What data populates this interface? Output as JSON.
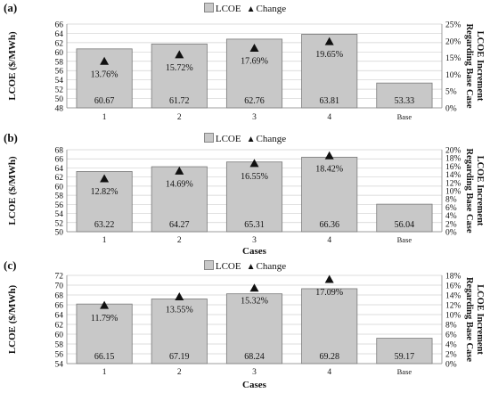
{
  "legend": {
    "bar_label": "LCOE",
    "marker_label": "Change"
  },
  "colors": {
    "bar_fill": "#c8c8c8",
    "bar_stroke": "#7a7a7a",
    "marker": "#111111",
    "grid": "#d0d0d0"
  },
  "chart_data": [
    {
      "panel_label": "(a)",
      "type": "bar",
      "categories": [
        "1",
        "2",
        "3",
        "4",
        "Base"
      ],
      "series": [
        {
          "name": "LCOE",
          "values": [
            60.67,
            61.72,
            62.76,
            63.81,
            53.33
          ],
          "labels": [
            "60.67",
            "61.72",
            "62.76",
            "63.81",
            "53.33"
          ]
        },
        {
          "name": "Change",
          "axis": "right",
          "values": [
            13.76,
            15.72,
            17.69,
            19.65,
            null
          ],
          "labels": [
            "13.76%",
            "15.72%",
            "17.69%",
            "19.65%",
            ""
          ]
        }
      ],
      "xlabel": "",
      "ylabel": "LCOE ($/MWh)",
      "y2label": [
        "LCOE Increment",
        "Regarding Base Case"
      ],
      "ylim": [
        48,
        66
      ],
      "yticks": [
        48,
        50,
        52,
        54,
        56,
        58,
        60,
        62,
        64,
        66
      ],
      "y2lim": [
        0,
        25
      ],
      "y2ticks": [
        "0%",
        "5%",
        "10%",
        "15%",
        "20%",
        "25%"
      ],
      "grid": true,
      "legend_position": "top-center"
    },
    {
      "panel_label": "(b)",
      "type": "bar",
      "categories": [
        "1",
        "2",
        "3",
        "4",
        "Base"
      ],
      "series": [
        {
          "name": "LCOE",
          "values": [
            63.22,
            64.27,
            65.31,
            66.36,
            56.04
          ],
          "labels": [
            "63.22",
            "64.27",
            "65.31",
            "66.36",
            "56.04"
          ]
        },
        {
          "name": "Change",
          "axis": "right",
          "values": [
            12.82,
            14.69,
            16.55,
            18.42,
            null
          ],
          "labels": [
            "12.82%",
            "14.69%",
            "16.55%",
            "18.42%",
            ""
          ]
        }
      ],
      "xlabel": "Cases",
      "ylabel": "LCOE ($/MWh)",
      "y2label": [
        "LCOE Increment",
        "Regarding Base Case"
      ],
      "ylim": [
        50,
        68
      ],
      "yticks": [
        50,
        52,
        54,
        56,
        58,
        60,
        62,
        64,
        66,
        68
      ],
      "y2lim": [
        0,
        20
      ],
      "y2ticks": [
        "0%",
        "2%",
        "4%",
        "6%",
        "8%",
        "10%",
        "12%",
        "14%",
        "16%",
        "18%",
        "20%"
      ],
      "grid": true,
      "legend_position": "top-center"
    },
    {
      "panel_label": "(c)",
      "type": "bar",
      "categories": [
        "1",
        "2",
        "3",
        "4",
        "Base"
      ],
      "series": [
        {
          "name": "LCOE",
          "values": [
            66.15,
            67.19,
            68.24,
            69.28,
            59.17
          ],
          "labels": [
            "66.15",
            "67.19",
            "68.24",
            "69.28",
            "59.17"
          ]
        },
        {
          "name": "Change",
          "axis": "right",
          "values": [
            11.79,
            13.55,
            15.32,
            17.09,
            null
          ],
          "labels": [
            "11.79%",
            "13.55%",
            "15.32%",
            "17.09%",
            ""
          ]
        }
      ],
      "xlabel": "Cases",
      "ylabel": "LCOE ($/MWh)",
      "y2label": [
        "LCOE Increment",
        "Regarding Base Case"
      ],
      "ylim": [
        54,
        72
      ],
      "yticks": [
        54,
        56,
        58,
        60,
        62,
        64,
        66,
        68,
        70,
        72
      ],
      "y2lim": [
        0,
        18
      ],
      "y2ticks": [
        "0%",
        "2%",
        "4%",
        "6%",
        "8%",
        "10%",
        "12%",
        "14%",
        "16%",
        "18%"
      ],
      "grid": true,
      "legend_position": "top-center"
    }
  ]
}
